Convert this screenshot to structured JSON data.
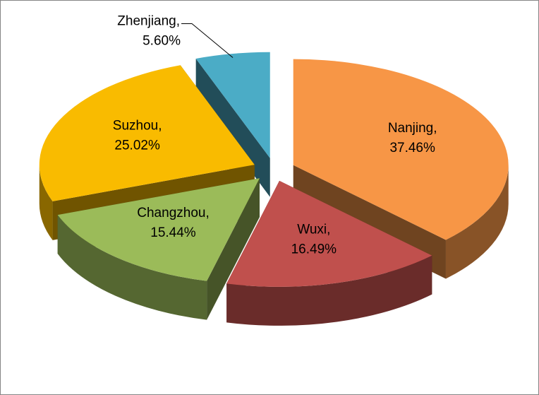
{
  "chart_data": {
    "type": "pie3d",
    "categories": [
      "Nanjing,",
      "Wuxi,",
      "Changzhou,",
      "Suzhou,",
      "Zhenjiang,"
    ],
    "values": [
      37.46,
      16.49,
      15.44,
      25.02,
      5.6
    ],
    "value_labels": [
      "37.46%",
      "16.49%",
      "15.44%",
      "25.02%",
      "5.60%"
    ],
    "colors": [
      "#f79646",
      "#c0504d",
      "#9bbb59",
      "#f9bb00",
      "#4bacc6"
    ]
  }
}
